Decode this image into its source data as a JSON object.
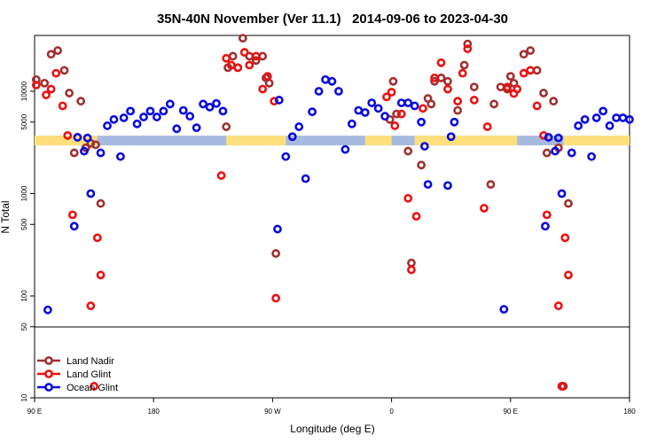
{
  "chart_data": {
    "type": "scatter",
    "title": "35N-40N November (Ver 11.1)   2014-09-06 to 2023-04-30",
    "xlabel": "Longitude (deg E)",
    "ylabel": "N Total",
    "y_scale": "log",
    "xlim": [
      90,
      270
    ],
    "ylim": [
      10,
      50000
    ],
    "x_tick_values": [
      90,
      126,
      162,
      198,
      234,
      270
    ],
    "x_tick_labels": [
      "90 E",
      "180",
      "90 W",
      "0",
      "90 E",
      "180"
    ],
    "y_tick_values": [
      100,
      500,
      1000,
      5000,
      10000
    ],
    "y_tick_labels": [
      "100",
      "500",
      "1000",
      "5000",
      "10000"
    ],
    "y_tick_values_lower": [
      10,
      50
    ],
    "y_tick_labels_lower": [
      "10",
      "50"
    ],
    "grid": false,
    "legend_position": "bottom-left",
    "band_y": 3300,
    "band_colors": {
      "ocean": "#a7bbe0",
      "land": "#fde07c"
    },
    "band_land_segments": [
      [
        90,
        109
      ],
      [
        148,
        166
      ],
      [
        190,
        198
      ],
      [
        205,
        236
      ],
      [
        250,
        270
      ]
    ],
    "series": [
      {
        "name": "Land Nadir",
        "color": "#a03030",
        "points": [
          [
            90.5,
            13000
          ],
          [
            93,
            12000
          ],
          [
            95,
            23000
          ],
          [
            97,
            25000
          ],
          [
            99,
            16000
          ],
          [
            100.5,
            9600
          ],
          [
            102,
            2500
          ],
          [
            104,
            8000
          ],
          [
            105.5,
            2800
          ],
          [
            107,
            3100
          ],
          [
            108.5,
            3000
          ],
          [
            110,
            800
          ],
          [
            148,
            4500
          ],
          [
            148.5,
            17000
          ],
          [
            150,
            22000
          ],
          [
            151.5,
            17000
          ],
          [
            153,
            33000
          ],
          [
            155,
            22000
          ],
          [
            157,
            20000
          ],
          [
            159,
            22000
          ],
          [
            160,
            13500
          ],
          [
            161,
            12000
          ],
          [
            163,
            260
          ],
          [
            197.5,
            5300
          ],
          [
            199.5,
            6000
          ],
          [
            198.5,
            12500
          ],
          [
            203,
            2600
          ],
          [
            204,
            210
          ],
          [
            207,
            1900
          ],
          [
            209,
            8500
          ],
          [
            210,
            7500
          ],
          [
            211,
            12500
          ],
          [
            213,
            13500
          ],
          [
            215,
            12500
          ],
          [
            218,
            6500
          ],
          [
            220,
            18000
          ],
          [
            221,
            29000
          ],
          [
            223,
            11000
          ],
          [
            228,
            1230
          ],
          [
            229,
            7500
          ],
          [
            231,
            11000
          ],
          [
            233,
            10500
          ],
          [
            234,
            14000
          ],
          [
            235,
            12000
          ],
          [
            238,
            23000
          ],
          [
            240,
            25000
          ],
          [
            242,
            16000
          ],
          [
            244,
            9600
          ],
          [
            245,
            2500
          ],
          [
            247,
            8000
          ],
          [
            248.5,
            2800
          ],
          [
            250,
            13
          ],
          [
            251.5,
            800
          ]
        ]
      },
      {
        "name": "Land Glint",
        "color": "#ee1010",
        "points": [
          [
            90.5,
            11500
          ],
          [
            93.5,
            9200
          ],
          [
            95,
            10500
          ],
          [
            96.5,
            15000
          ],
          [
            98.5,
            7200
          ],
          [
            100,
            3700
          ],
          [
            101.5,
            620
          ],
          [
            107,
            80
          ],
          [
            108,
            13
          ],
          [
            109,
            370
          ],
          [
            110,
            160
          ],
          [
            146.5,
            1500
          ],
          [
            148,
            21000
          ],
          [
            149.5,
            18000
          ],
          [
            151.5,
            17000
          ],
          [
            153.5,
            24000
          ],
          [
            155,
            18000
          ],
          [
            157,
            22000
          ],
          [
            159,
            10500
          ],
          [
            160.5,
            14000
          ],
          [
            162.5,
            8000
          ],
          [
            163,
            95
          ],
          [
            196.5,
            8800
          ],
          [
            198,
            9800
          ],
          [
            199,
            4600
          ],
          [
            201,
            6000
          ],
          [
            203,
            900
          ],
          [
            204,
            180
          ],
          [
            205.5,
            600
          ],
          [
            207.5,
            6800
          ],
          [
            211,
            13500
          ],
          [
            213,
            19000
          ],
          [
            215,
            10500
          ],
          [
            218,
            8000
          ],
          [
            219.5,
            15000
          ],
          [
            221,
            26000
          ],
          [
            223,
            8200
          ],
          [
            226,
            720
          ],
          [
            227,
            4500
          ],
          [
            233,
            11000
          ],
          [
            235,
            9500
          ],
          [
            236,
            10500
          ],
          [
            238,
            15000
          ],
          [
            240,
            16000
          ],
          [
            242,
            7200
          ],
          [
            244,
            3700
          ],
          [
            245,
            620
          ],
          [
            248.5,
            80
          ],
          [
            249.5,
            13
          ],
          [
            250.5,
            370
          ],
          [
            251.5,
            160
          ]
        ]
      },
      {
        "name": "Ocean Glint",
        "color": "#0a0ae0",
        "points": [
          [
            94,
            73
          ],
          [
            102,
            480
          ],
          [
            103,
            3550
          ],
          [
            105,
            2600
          ],
          [
            106,
            3500
          ],
          [
            107,
            1000
          ],
          [
            110,
            2500
          ],
          [
            112,
            4600
          ],
          [
            114,
            5300
          ],
          [
            116,
            2300
          ],
          [
            117,
            5500
          ],
          [
            119,
            6400
          ],
          [
            121,
            4800
          ],
          [
            123,
            5600
          ],
          [
            125,
            6400
          ],
          [
            127,
            5600
          ],
          [
            129,
            6400
          ],
          [
            131,
            7500
          ],
          [
            133,
            4300
          ],
          [
            135,
            6500
          ],
          [
            137,
            5700
          ],
          [
            139,
            4400
          ],
          [
            141,
            7500
          ],
          [
            143,
            7000
          ],
          [
            145,
            7600
          ],
          [
            147,
            6400
          ],
          [
            163.5,
            450
          ],
          [
            164,
            8200
          ],
          [
            166,
            2300
          ],
          [
            168,
            3600
          ],
          [
            170,
            4500
          ],
          [
            172,
            1400
          ],
          [
            174,
            6300
          ],
          [
            176,
            10000
          ],
          [
            178,
            13000
          ],
          [
            180,
            12500
          ],
          [
            182,
            10000
          ],
          [
            184,
            2700
          ],
          [
            186,
            4800
          ],
          [
            188,
            6500
          ],
          [
            190,
            6200
          ],
          [
            192,
            7700
          ],
          [
            194,
            6800
          ],
          [
            196,
            5700
          ],
          [
            201,
            7700
          ],
          [
            203,
            7700
          ],
          [
            205,
            7200
          ],
          [
            207,
            5000
          ],
          [
            208,
            2900
          ],
          [
            209,
            1230
          ],
          [
            215,
            1200
          ],
          [
            216,
            3600
          ],
          [
            217,
            5000
          ],
          [
            232,
            74
          ],
          [
            244.5,
            480
          ],
          [
            245.5,
            3550
          ],
          [
            247.5,
            2600
          ],
          [
            248.5,
            3500
          ],
          [
            249.5,
            1000
          ],
          [
            252.5,
            2500
          ],
          [
            254.5,
            4600
          ],
          [
            256.5,
            5300
          ],
          [
            258.5,
            2300
          ],
          [
            260,
            5500
          ],
          [
            262,
            6400
          ],
          [
            264,
            4600
          ],
          [
            266,
            5500
          ],
          [
            268,
            5500
          ],
          [
            270,
            5300
          ]
        ]
      }
    ]
  }
}
